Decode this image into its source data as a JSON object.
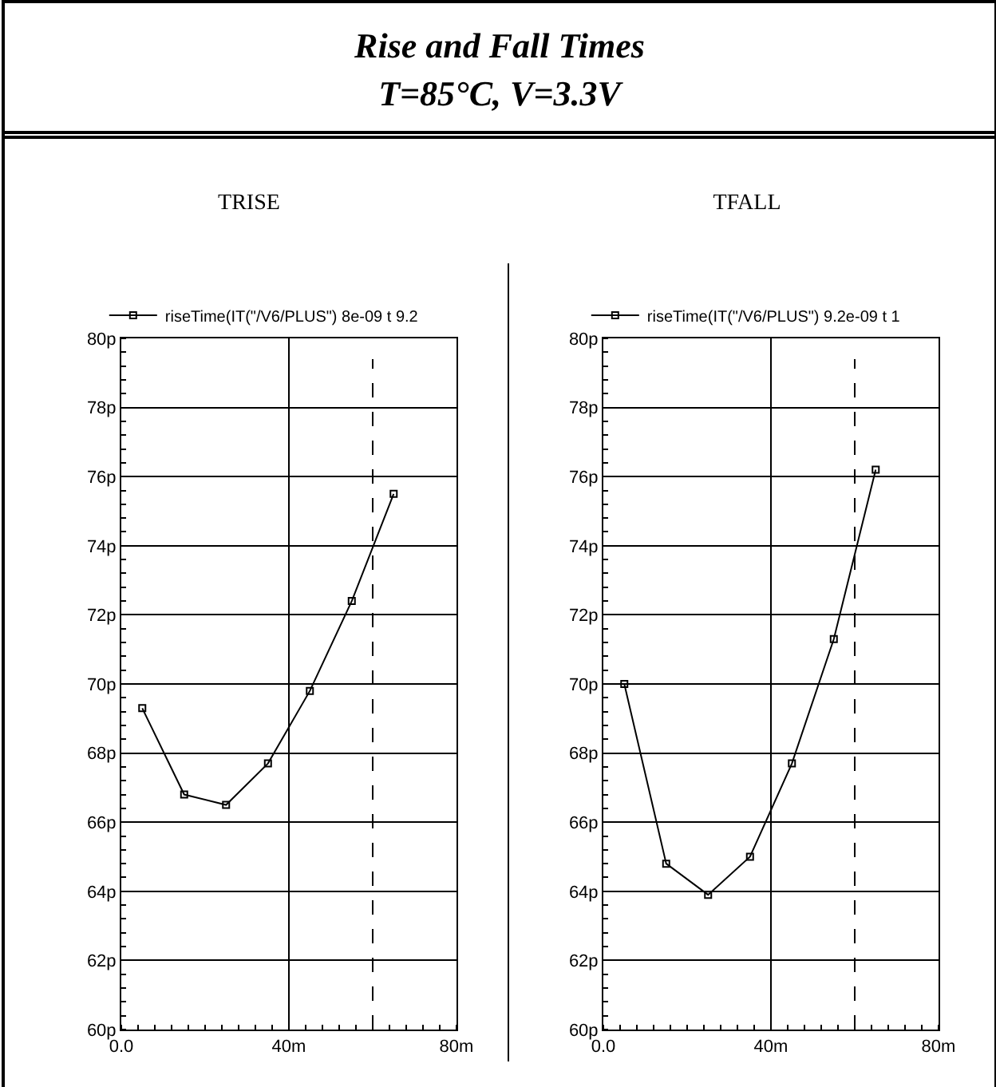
{
  "chart_data": [
    {
      "type": "line",
      "title": "TRISE",
      "annotations": [
        "Rise and Fall Times",
        "T=85°C, V=3.3V"
      ],
      "x": [
        5,
        15,
        25,
        35,
        45,
        55,
        65
      ],
      "series": [
        {
          "name": "riseTime(IT(\"/V6/PLUS\") 8e-09 t 9.2",
          "color": "#000000",
          "values": [
            69.3,
            66.8,
            66.5,
            67.7,
            69.8,
            72.4,
            75.5
          ]
        }
      ],
      "xlim": [
        0,
        80
      ],
      "xticks": [
        {
          "value": 0,
          "label": "0.0"
        },
        {
          "value": 40,
          "label": "40m"
        },
        {
          "value": 80,
          "label": "80m"
        }
      ],
      "ylim": [
        60,
        80
      ],
      "yticks": [
        {
          "value": 60,
          "label": "60p"
        },
        {
          "value": 62,
          "label": "62p"
        },
        {
          "value": 64,
          "label": "64p"
        },
        {
          "value": 66,
          "label": "66p"
        },
        {
          "value": 68,
          "label": "68p"
        },
        {
          "value": 70,
          "label": "70p"
        },
        {
          "value": 72,
          "label": "72p"
        },
        {
          "value": 74,
          "label": "74p"
        },
        {
          "value": 76,
          "label": "76p"
        },
        {
          "value": 78,
          "label": "78p"
        },
        {
          "value": 80,
          "label": "80p"
        }
      ],
      "ref_lines": [
        {
          "axis": "x",
          "value": 60,
          "color": "#000000",
          "line_style": "dashed"
        }
      ],
      "grid": true,
      "legend": "top",
      "marker": "square",
      "line_style": "solid"
    },
    {
      "type": "line",
      "title": "TFALL",
      "x": [
        5,
        15,
        25,
        35,
        45,
        55,
        65
      ],
      "series": [
        {
          "name": "riseTime(IT(\"/V6/PLUS\") 9.2e-09 t 1",
          "color": "#000000",
          "values": [
            70.0,
            64.8,
            63.9,
            65.0,
            67.7,
            71.3,
            76.2
          ]
        }
      ],
      "xlim": [
        0,
        80
      ],
      "xticks": [
        {
          "value": 0,
          "label": "0.0"
        },
        {
          "value": 40,
          "label": "40m"
        },
        {
          "value": 80,
          "label": "80m"
        }
      ],
      "ylim": [
        60,
        80
      ],
      "yticks": [
        {
          "value": 60,
          "label": "60p"
        },
        {
          "value": 62,
          "label": "62p"
        },
        {
          "value": 64,
          "label": "64p"
        },
        {
          "value": 66,
          "label": "66p"
        },
        {
          "value": 68,
          "label": "68p"
        },
        {
          "value": 70,
          "label": "70p"
        },
        {
          "value": 72,
          "label": "72p"
        },
        {
          "value": 74,
          "label": "74p"
        },
        {
          "value": 76,
          "label": "76p"
        },
        {
          "value": 78,
          "label": "78p"
        },
        {
          "value": 80,
          "label": "80p"
        }
      ],
      "ref_lines": [
        {
          "axis": "x",
          "value": 60,
          "color": "#000000",
          "line_style": "dashed"
        }
      ],
      "grid": true,
      "legend": "top",
      "marker": "square",
      "line_style": "solid"
    }
  ]
}
